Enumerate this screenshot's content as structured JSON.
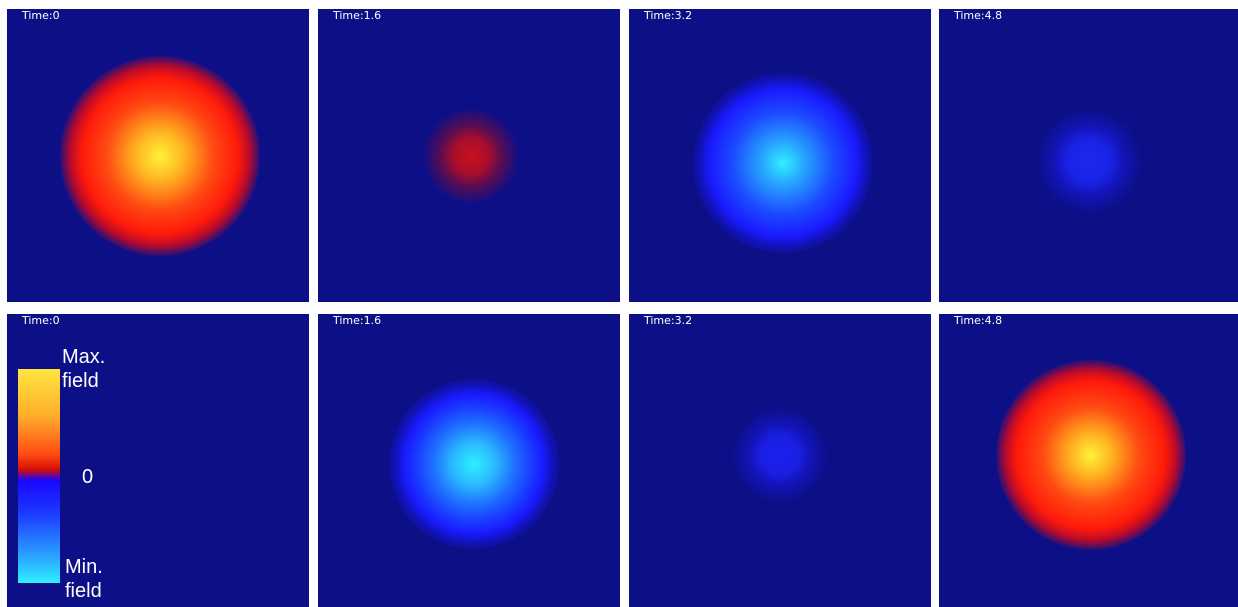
{
  "panels": [
    {
      "time_label": "Time:0",
      "colormap_value": "max"
    },
    {
      "time_label": "Time:1.6",
      "colormap_value": "weak-positive"
    },
    {
      "time_label": "Time:3.2",
      "colormap_value": "min"
    },
    {
      "time_label": "Time:4.8",
      "colormap_value": "weak-negative"
    },
    {
      "time_label": "Time:0",
      "colormap_value": "zero"
    },
    {
      "time_label": "Time:1.6",
      "colormap_value": "min"
    },
    {
      "time_label": "Time:3.2",
      "colormap_value": "weak-negative"
    },
    {
      "time_label": "Time:4.8",
      "colormap_value": "max"
    }
  ],
  "legend": {
    "max_line1": "Max.",
    "max_line2": "field",
    "zero": "0",
    "min_line1": "Min.",
    "min_line2": "field"
  },
  "colors": {
    "background": "#0d0f87",
    "max": "#fff23a",
    "positive": "#ff1a0a",
    "negative": "#1a1aff",
    "min": "#2ff0ff"
  }
}
